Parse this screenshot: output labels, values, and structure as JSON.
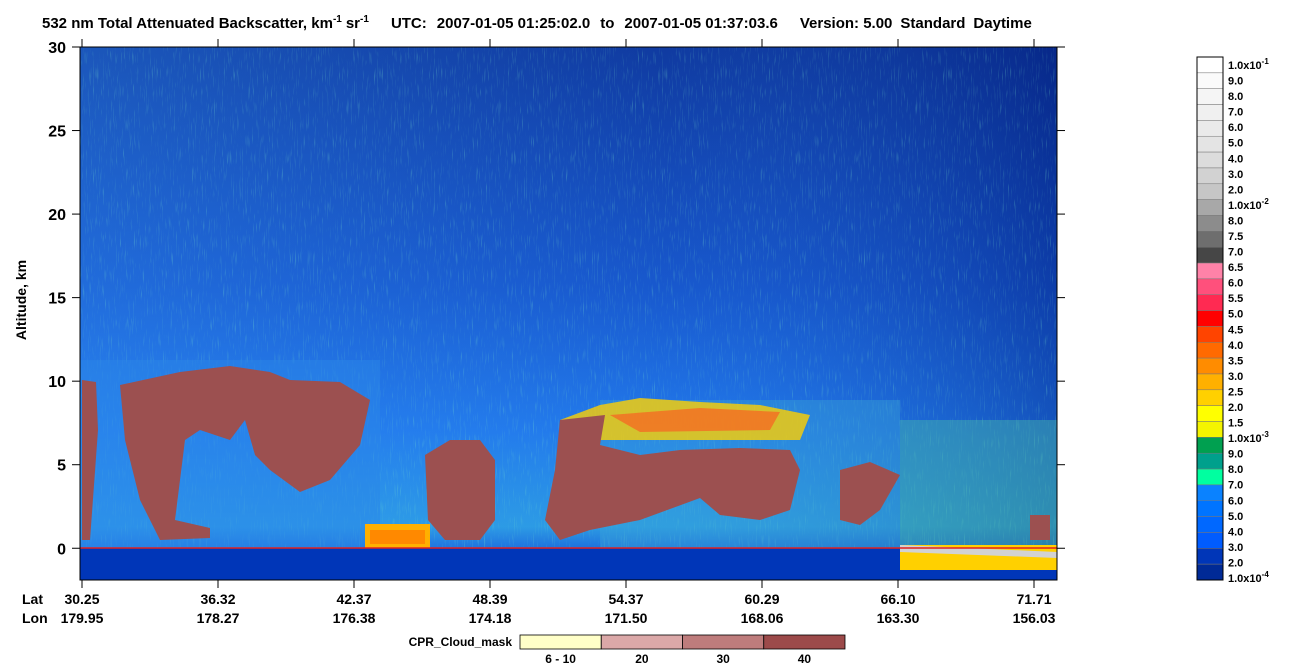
{
  "chart_data": {
    "type": "curtain",
    "title": {
      "main": "532 nm Total Attenuated Backscatter, km",
      "exp1": "-1",
      "unit2": "sr",
      "exp2": "-1",
      "utc_label": "UTC:",
      "start": "2007-01-05 01:25:02.0",
      "to": "to",
      "end": "2007-01-05 01:37:03.6",
      "version": "Version: 5.00",
      "mode": "Standard",
      "daynight": "Daytime"
    },
    "y_label": "Altitude, km",
    "ylim": [
      -1.9,
      30
    ],
    "yticks": [
      0,
      5,
      10,
      15,
      20,
      25,
      30
    ],
    "x_row_labels": [
      "Lat",
      "Lon"
    ],
    "lat": [
      "30.25",
      "36.32",
      "42.37",
      "48.39",
      "54.37",
      "60.29",
      "66.10",
      "71.71"
    ],
    "lon": [
      "179.95",
      "178.27",
      "176.38",
      "174.18",
      "171.50",
      "168.06",
      "163.30",
      "156.03"
    ],
    "colorbar": {
      "labels": [
        {
          "mantissa": "1.0x10",
          "exp": "-1"
        },
        {
          "mantissa": "9.0"
        },
        {
          "mantissa": "8.0"
        },
        {
          "mantissa": "7.0"
        },
        {
          "mantissa": "6.0"
        },
        {
          "mantissa": "5.0"
        },
        {
          "mantissa": "4.0"
        },
        {
          "mantissa": "3.0"
        },
        {
          "mantissa": "2.0"
        },
        {
          "mantissa": "1.0x10",
          "exp": "-2"
        },
        {
          "mantissa": "8.0"
        },
        {
          "mantissa": "7.5"
        },
        {
          "mantissa": "7.0"
        },
        {
          "mantissa": "6.5"
        },
        {
          "mantissa": "6.0"
        },
        {
          "mantissa": "5.5"
        },
        {
          "mantissa": "5.0"
        },
        {
          "mantissa": "4.5"
        },
        {
          "mantissa": "4.0"
        },
        {
          "mantissa": "3.5"
        },
        {
          "mantissa": "3.0"
        },
        {
          "mantissa": "2.5"
        },
        {
          "mantissa": "2.0"
        },
        {
          "mantissa": "1.5"
        },
        {
          "mantissa": "1.0x10",
          "exp": "-3"
        },
        {
          "mantissa": "9.0"
        },
        {
          "mantissa": "8.0"
        },
        {
          "mantissa": "7.0"
        },
        {
          "mantissa": "6.0"
        },
        {
          "mantissa": "5.0"
        },
        {
          "mantissa": "4.0"
        },
        {
          "mantissa": "3.0"
        },
        {
          "mantissa": "2.0"
        },
        {
          "mantissa": "1.0x10",
          "exp": "-4"
        }
      ],
      "colors": [
        "#ffffff",
        "#fafafa",
        "#f5f5f5",
        "#f0f0f0",
        "#eaeaea",
        "#e4e4e4",
        "#dcdcdc",
        "#d2d2d2",
        "#c6c6c6",
        "#a8a8a8",
        "#8c8c8c",
        "#6e6e6e",
        "#464646",
        "#ff82a8",
        "#ff507c",
        "#ff2a52",
        "#ff0000",
        "#ff4400",
        "#ff6a00",
        "#ff8c00",
        "#ffb000",
        "#ffd000",
        "#ffff00",
        "#f4f400",
        "#00a050",
        "#00a08c",
        "#00ffa0",
        "#0a82ff",
        "#0074ff",
        "#0068ff",
        "#005cff",
        "#0036b8",
        "#002a96"
      ]
    },
    "cpr_legend": {
      "label": "CPR_Cloud_mask",
      "items": [
        "6 - 10",
        "20",
        "30",
        "40"
      ],
      "colors": [
        "#ffffc8",
        "#dba8a8",
        "#be7c7c",
        "#9c4a4a"
      ]
    }
  }
}
